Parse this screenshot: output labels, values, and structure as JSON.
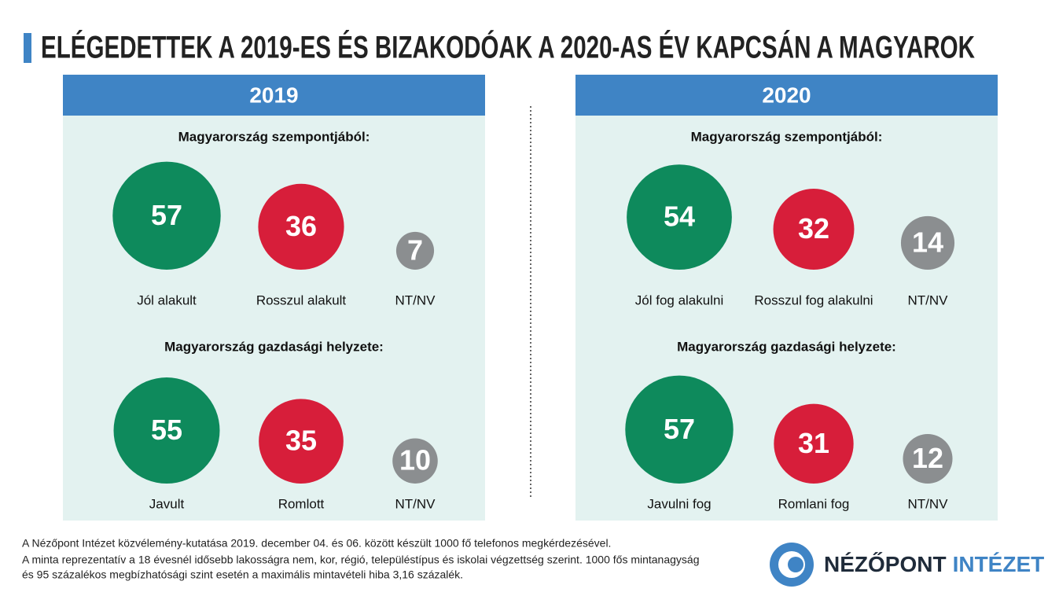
{
  "title": "ELÉGEDETTEK A 2019-ES ÉS BIZAKODÓAK A 2020-AS ÉV KAPCSÁN A MAGYAROK",
  "panels": [
    {
      "header": "2019",
      "sections": [
        {
          "heading": "Magyarország szempontjából:",
          "categories": [
            "Jól alakult",
            "Rosszul alakult",
            "NT/NV"
          ],
          "values": [
            57,
            36,
            7
          ],
          "colors": [
            "#0e8a5c",
            "#d71e3a",
            "#8b8e90"
          ]
        },
        {
          "heading": "Magyarország gazdasági helyzete:",
          "categories": [
            "Javult",
            "Romlott",
            "NT/NV"
          ],
          "values": [
            55,
            35,
            10
          ],
          "colors": [
            "#0e8a5c",
            "#d71e3a",
            "#8b8e90"
          ]
        }
      ]
    },
    {
      "header": "2020",
      "sections": [
        {
          "heading": "Magyarország szempontjából:",
          "categories": [
            "Jól fog alakulni",
            "Rosszul fog alakulni",
            "NT/NV"
          ],
          "values": [
            54,
            32,
            14
          ],
          "colors": [
            "#0e8a5c",
            "#d71e3a",
            "#8b8e90"
          ]
        },
        {
          "heading": "Magyarország gazdasági helyzete:",
          "categories": [
            "Javulni fog",
            "Romlani fog",
            "NT/NV"
          ],
          "values": [
            57,
            31,
            12
          ],
          "colors": [
            "#0e8a5c",
            "#d71e3a",
            "#8b8e90"
          ]
        }
      ]
    }
  ],
  "footnote": [
    "A Nézőpont Intézet közvélemény-kutatása 2019. december 04. és 06. között készült 1000 fő telefonos megkérdezésével.",
    "A minta reprezentatív a 18 évesnél idősebb lakosságra nem, kor, régió, településtípus és iskolai végzettség szerint. 1000 fős mintanagyság",
    "és 95 százalékos megbízhatósági szint esetén a maximális mintavételi hiba 3,16 százalék."
  ],
  "logo": {
    "name": "NÉZŐPONT",
    "suffix": "INTÉZET"
  }
}
